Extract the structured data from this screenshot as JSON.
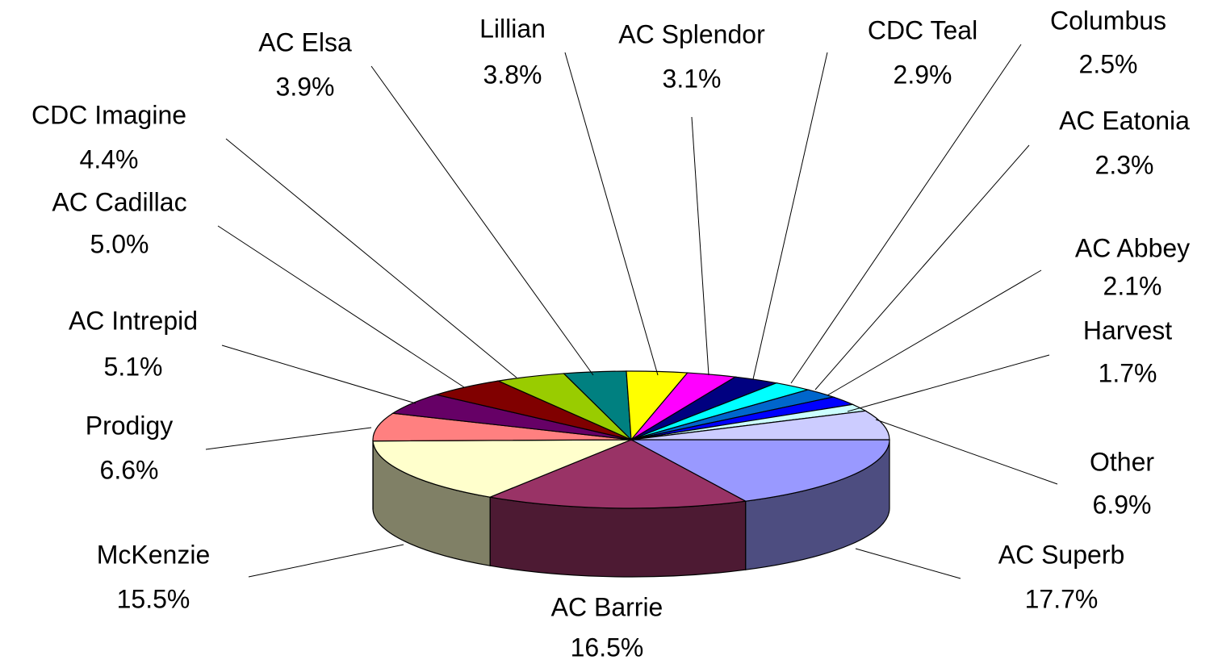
{
  "chart_data": {
    "type": "pie",
    "categories": [
      "AC Superb",
      "AC Barrie",
      "McKenzie",
      "Prodigy",
      "AC Intrepid",
      "AC Cadillac",
      "CDC Imagine",
      "AC Elsa",
      "Lillian",
      "AC Splendor",
      "CDC Teal",
      "Columbus",
      "AC Eatonia",
      "AC Abbey",
      "Harvest",
      "Other"
    ],
    "values": [
      17.7,
      16.5,
      15.5,
      6.6,
      5.1,
      5.0,
      4.4,
      3.9,
      3.8,
      3.1,
      2.9,
      2.5,
      2.3,
      2.1,
      1.7,
      6.9
    ],
    "value_labels": [
      "17.7%",
      "16.5%",
      "15.5%",
      "6.6%",
      "5.1%",
      "5.0%",
      "4.4%",
      "3.9%",
      "3.8%",
      "3.1%",
      "2.9%",
      "2.5%",
      "2.3%",
      "2.1%",
      "1.7%",
      "6.9%"
    ],
    "colors": [
      "#9999ff",
      "#993366",
      "#ffffcc",
      "#ff8080",
      "#660066",
      "#800000",
      "#99cc00",
      "#008080",
      "#ffff00",
      "#ff00ff",
      "#000080",
      "#00ffff",
      "#0066cc",
      "#0000ff",
      "#ccffff",
      "#ccccff"
    ]
  }
}
